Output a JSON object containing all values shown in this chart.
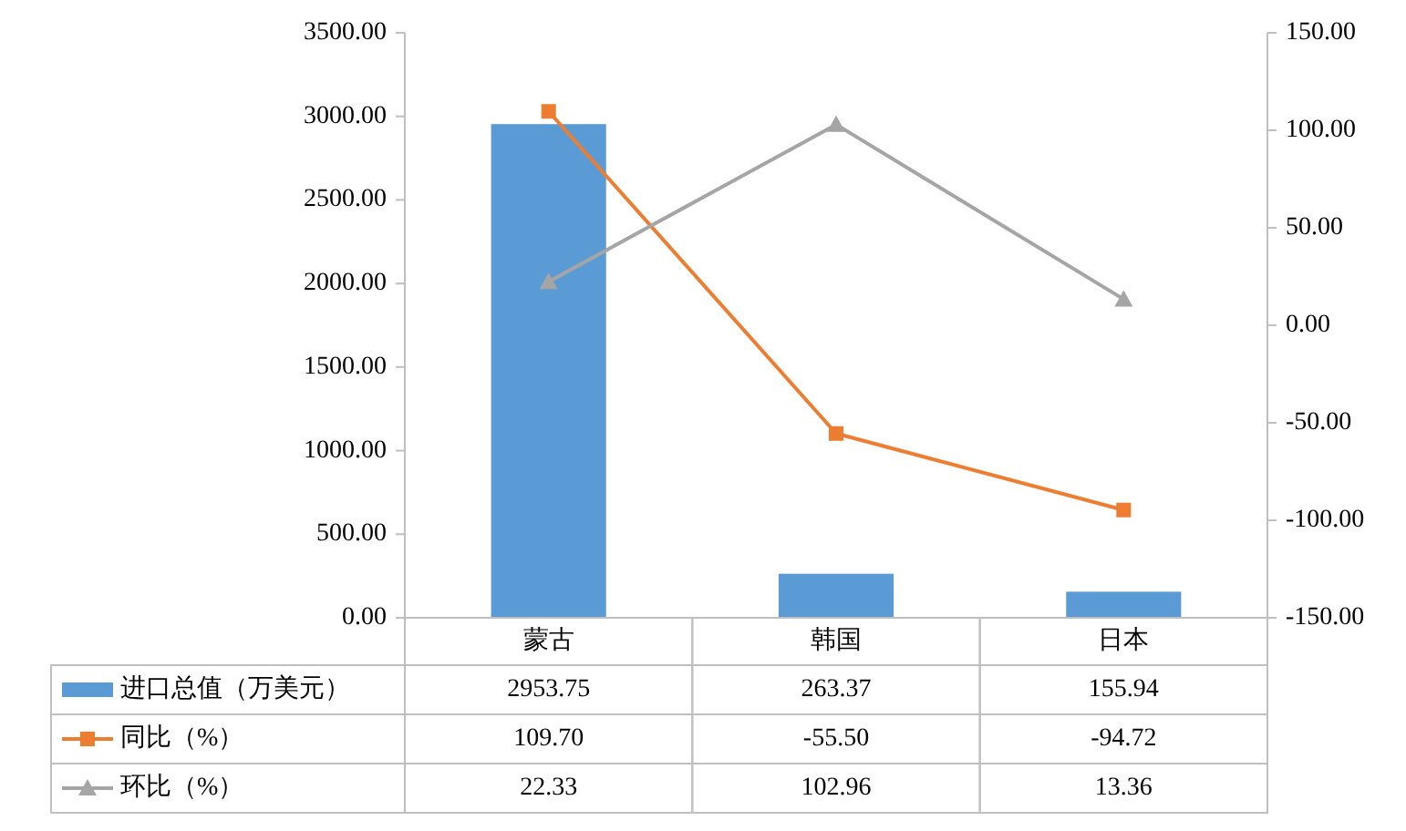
{
  "chart_data": {
    "type": "bar",
    "categories": [
      "蒙古",
      "韩国",
      "日本"
    ],
    "series": [
      {
        "name": "进口总值（万美元）",
        "color": "#5b9bd5",
        "values": [
          2953.75,
          263.37,
          155.94
        ],
        "value_labels": [
          "2953.75",
          "263.37",
          "155.94"
        ]
      },
      {
        "name": "同比（%）",
        "type": "line",
        "axis": "y2",
        "marker": "square",
        "color": "#ed7d31",
        "values": [
          109.7,
          -55.5,
          -94.72
        ],
        "value_labels": [
          "109.70",
          "-55.50",
          "-94.72"
        ]
      },
      {
        "name": "环比（%）",
        "type": "line",
        "axis": "y2",
        "marker": "triangle",
        "color": "#a5a5a5",
        "values": [
          22.33,
          102.96,
          13.36
        ],
        "value_labels": [
          "22.33",
          "102.96",
          "13.36"
        ]
      }
    ],
    "ylim": [
      0,
      3500
    ],
    "yticks": [
      {
        "value": 0,
        "label": "0.00"
      },
      {
        "value": 500,
        "label": "500.00"
      },
      {
        "value": 1000,
        "label": "1000.00"
      },
      {
        "value": 1500,
        "label": "1500.00"
      },
      {
        "value": 2000,
        "label": "2000.00"
      },
      {
        "value": 2500,
        "label": "2500.00"
      },
      {
        "value": 3000,
        "label": "3000.00"
      },
      {
        "value": 3500,
        "label": "3500.00"
      }
    ],
    "y2lim": [
      -150,
      150
    ],
    "y2ticks": [
      {
        "value": -150,
        "label": "-150.00"
      },
      {
        "value": -100,
        "label": "-100.00"
      },
      {
        "value": -50,
        "label": "-50.00"
      },
      {
        "value": 0,
        "label": "0.00"
      },
      {
        "value": 50,
        "label": "50.00"
      },
      {
        "value": 100,
        "label": "100.00"
      },
      {
        "value": 150,
        "label": "150.00"
      }
    ],
    "legend": "bottom left",
    "grid": false,
    "line_style": "solid"
  }
}
